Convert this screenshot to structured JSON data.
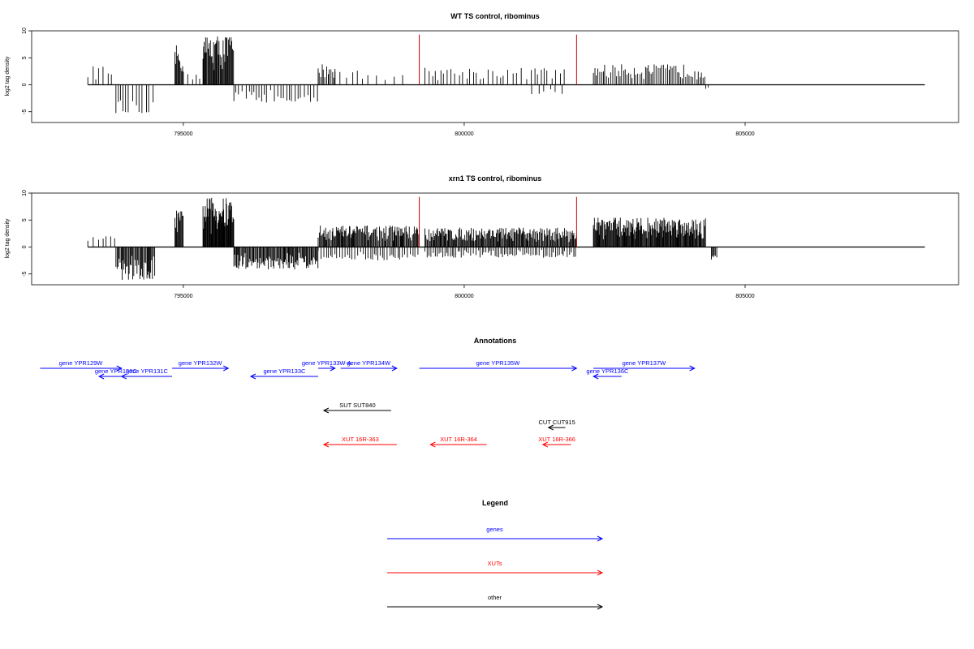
{
  "colors": {
    "gene": "#0000ff",
    "xut": "#ff0000",
    "other": "#000000",
    "highlight": "#cc0000"
  },
  "chart_data": [
    {
      "type": "bar",
      "title": "WT TS control, ribominus",
      "ylabel": "log2 tag density",
      "xlim": [
        792300,
        808800
      ],
      "ylim": [
        -7,
        10
      ],
      "xticks": [
        795000,
        800000,
        805000
      ],
      "yticks": [
        10,
        5,
        0,
        -5
      ],
      "data_range": [
        793300,
        808200
      ],
      "highlights": [
        {
          "x": 799200,
          "y": 9.3
        },
        {
          "x": 802000,
          "y": 9.3
        }
      ],
      "regions": [
        {
          "start": 793300,
          "end": 793800,
          "sign": 1,
          "max": 3.5,
          "step": 75
        },
        {
          "start": 793800,
          "end": 794500,
          "sign": -1,
          "max": 5.3,
          "step": 60
        },
        {
          "start": 794850,
          "end": 795000,
          "sign": 1,
          "max": 7.3,
          "step": 15
        },
        {
          "start": 795000,
          "end": 795350,
          "sign": 1,
          "max": 2.5,
          "step": 90
        },
        {
          "start": 795350,
          "end": 795900,
          "sign": 1,
          "max": 9.3,
          "step": 14
        },
        {
          "start": 795900,
          "end": 797400,
          "sign": -1,
          "max": 3.3,
          "step": 55
        },
        {
          "start": 797400,
          "end": 797700,
          "sign": 1,
          "max": 4.0,
          "step": 24
        },
        {
          "start": 797700,
          "end": 799000,
          "sign": 1,
          "max": 2.8,
          "step": 120
        },
        {
          "start": 799300,
          "end": 801800,
          "sign": 1,
          "max": 3.2,
          "step": 70
        },
        {
          "start": 801200,
          "end": 801800,
          "sign": -1,
          "max": 1.8,
          "step": 110
        },
        {
          "start": 802300,
          "end": 804300,
          "sign": 1,
          "max": 3.8,
          "step": 32
        },
        {
          "start": 804300,
          "end": 804400,
          "sign": -1,
          "max": 1.0,
          "step": 60
        }
      ]
    },
    {
      "type": "bar",
      "title": "xrn1 TS control, ribominus",
      "ylabel": "log2 tag density",
      "xlim": [
        792300,
        808800
      ],
      "ylim": [
        -7,
        10
      ],
      "xticks": [
        795000,
        800000,
        805000
      ],
      "yticks": [
        10,
        5,
        0,
        -5
      ],
      "data_range": [
        793300,
        808200
      ],
      "highlights": [
        {
          "x": 799200,
          "y": 9.3
        },
        {
          "x": 802000,
          "y": 9.3
        }
      ],
      "regions": [
        {
          "start": 793300,
          "end": 793800,
          "sign": 1,
          "max": 2.0,
          "step": 70
        },
        {
          "start": 793800,
          "end": 794500,
          "sign": -1,
          "max": 6.2,
          "step": 16
        },
        {
          "start": 794850,
          "end": 795000,
          "sign": 1,
          "max": 6.8,
          "step": 12
        },
        {
          "start": 795350,
          "end": 795900,
          "sign": 1,
          "max": 9.2,
          "step": 10
        },
        {
          "start": 795900,
          "end": 797400,
          "sign": -1,
          "max": 4.2,
          "step": 16
        },
        {
          "start": 797400,
          "end": 799200,
          "sign": 1,
          "max": 4.0,
          "step": 15
        },
        {
          "start": 797400,
          "end": 799200,
          "sign": -1,
          "max": 2.5,
          "step": 40
        },
        {
          "start": 799300,
          "end": 802000,
          "sign": 1,
          "max": 3.6,
          "step": 15
        },
        {
          "start": 799300,
          "end": 802000,
          "sign": -1,
          "max": 2.0,
          "step": 35
        },
        {
          "start": 802300,
          "end": 804300,
          "sign": 1,
          "max": 5.5,
          "step": 12
        },
        {
          "start": 804400,
          "end": 804500,
          "sign": -1,
          "max": 2.5,
          "step": 20
        }
      ]
    }
  ],
  "annotations": {
    "title": "Annotations",
    "items": [
      {
        "label": "gene YPR129W",
        "type": "gene",
        "start": 792450,
        "end": 793900,
        "dir": "right",
        "row": 0
      },
      {
        "label": "gene YPR130C",
        "type": "gene",
        "start": 793500,
        "end": 794100,
        "dir": "left",
        "row": 1
      },
      {
        "label": "gene YPR131C",
        "type": "gene",
        "start": 793900,
        "end": 794800,
        "dir": "left",
        "row": 1
      },
      {
        "label": "gene YPR132W",
        "type": "gene",
        "start": 794800,
        "end": 795800,
        "dir": "right",
        "row": 0
      },
      {
        "label": "gene YPR133C",
        "type": "gene",
        "start": 796200,
        "end": 797400,
        "dir": "left",
        "row": 1
      },
      {
        "label": "gene YPR133W-A",
        "type": "gene",
        "start": 797400,
        "end": 797700,
        "dir": "right",
        "row": 0
      },
      {
        "label": "gene YPR134W",
        "type": "gene",
        "start": 797800,
        "end": 798800,
        "dir": "right",
        "row": 0
      },
      {
        "label": "gene YPR135W",
        "type": "gene",
        "start": 799200,
        "end": 802000,
        "dir": "right",
        "row": 0
      },
      {
        "label": "gene YPR136C",
        "type": "gene",
        "start": 802300,
        "end": 802800,
        "dir": "left",
        "row": 1
      },
      {
        "label": "gene YPR137W",
        "type": "gene",
        "start": 802300,
        "end": 804100,
        "dir": "right",
        "row": 0
      },
      {
        "label": "SUT SUT840",
        "type": "other",
        "start": 797500,
        "end": 798700,
        "dir": "left",
        "row": 2
      },
      {
        "label": "CUT CUT915",
        "type": "other",
        "start": 801500,
        "end": 801800,
        "dir": "left",
        "row": 3
      },
      {
        "label": "XUT 16R-363",
        "type": "xut",
        "start": 797500,
        "end": 798800,
        "dir": "left",
        "row": 4
      },
      {
        "label": "XUT 16R-364",
        "type": "xut",
        "start": 799400,
        "end": 800400,
        "dir": "left",
        "row": 4
      },
      {
        "label": "XUT 16R-366",
        "type": "xut",
        "start": 801400,
        "end": 801900,
        "dir": "left",
        "row": 4
      }
    ]
  },
  "legend": {
    "title": "Legend",
    "items": [
      {
        "label": "genes",
        "type": "gene"
      },
      {
        "label": "XUTs",
        "type": "xut"
      },
      {
        "label": "other",
        "type": "other"
      }
    ]
  }
}
